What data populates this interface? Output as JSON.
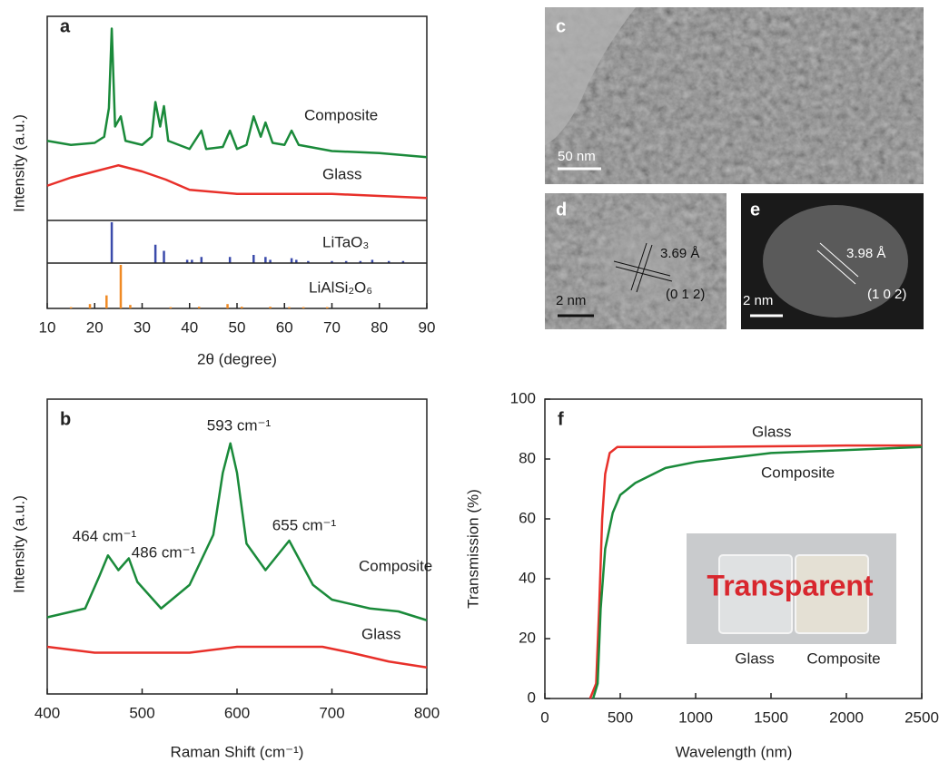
{
  "chart_data": [
    {
      "type": "line",
      "panel": "a",
      "x_label": "2θ (degree)",
      "y_label": "Intensity (a.u.)",
      "xlim": [
        10,
        90
      ],
      "xticks": [
        10,
        20,
        30,
        40,
        50,
        60,
        70,
        80,
        90
      ],
      "ylim": [
        0,
        100
      ],
      "series": [
        {
          "name": "Composite",
          "color": "#1a8a3a",
          "x": [
            10,
            15,
            20,
            22,
            23,
            23.6,
            24.3,
            25.5,
            26.5,
            30,
            32,
            32.8,
            33.8,
            34.6,
            35.5,
            40,
            42.5,
            43.5,
            47,
            48.5,
            50,
            52,
            53.5,
            55,
            56,
            57.5,
            60,
            61.5,
            63,
            70,
            80,
            90
          ],
          "values": [
            39,
            37,
            38,
            41,
            55,
            94,
            46,
            51,
            39,
            37,
            41,
            58,
            46,
            56,
            39,
            35,
            44,
            35,
            36,
            44,
            35,
            37,
            51,
            41,
            48,
            38,
            37,
            44,
            37,
            34,
            33,
            31
          ]
        },
        {
          "name": "Glass",
          "color": "#e8302a",
          "x": [
            10,
            15,
            20,
            25,
            30,
            35,
            40,
            50,
            60,
            70,
            80,
            90
          ],
          "values": [
            17,
            21,
            24,
            27,
            24,
            20,
            15,
            13,
            13,
            13,
            12,
            11
          ]
        }
      ],
      "reference_patterns": [
        {
          "name": "LiTaO₃",
          "color": "#3b4bab",
          "x": [
            23.6,
            32.8,
            34.6,
            39.5,
            40.5,
            42.5,
            48.5,
            53.5,
            56,
            57,
            61.5,
            62.5,
            65,
            70,
            73,
            76,
            78.5,
            82,
            85
          ],
          "values": [
            100,
            45,
            30,
            8,
            8,
            15,
            15,
            20,
            15,
            8,
            12,
            8,
            5,
            5,
            5,
            5,
            8,
            5,
            5
          ]
        },
        {
          "name": "LiAlSi₂O₆",
          "color": "#f08a24",
          "x": [
            15,
            19,
            22.5,
            25.5,
            27.5,
            36,
            42,
            48,
            51,
            57,
            61,
            64,
            69
          ],
          "values": [
            3,
            10,
            30,
            100,
            8,
            3,
            4,
            10,
            4,
            4,
            3,
            3,
            3
          ]
        }
      ]
    },
    {
      "type": "line",
      "panel": "b",
      "x_label": "Raman Shift (cm⁻¹)",
      "y_label": "Intensity (a.u.)",
      "xlim": [
        400,
        800
      ],
      "xticks": [
        400,
        500,
        600,
        700,
        800
      ],
      "ylim": [
        0,
        100
      ],
      "series": [
        {
          "name": "Composite",
          "color": "#1a8a3a",
          "x": [
            400,
            440,
            455,
            464,
            475,
            486,
            495,
            520,
            550,
            575,
            585,
            593,
            600,
            610,
            630,
            645,
            655,
            665,
            680,
            700,
            740,
            770,
            800
          ],
          "values": [
            26,
            29,
            40,
            47,
            42,
            46,
            38,
            29,
            37,
            54,
            75,
            85,
            75,
            51,
            42,
            48,
            52,
            46,
            37,
            32,
            29,
            28,
            25
          ]
        },
        {
          "name": "Glass",
          "color": "#e8302a",
          "x": [
            400,
            450,
            500,
            550,
            600,
            650,
            690,
            720,
            760,
            800
          ],
          "values": [
            16,
            14,
            14,
            14,
            16,
            16,
            16,
            14,
            11,
            9
          ]
        }
      ],
      "annotations": [
        "593 cm⁻¹",
        "464 cm⁻¹",
        "486 cm⁻¹",
        "655 cm⁻¹"
      ]
    },
    {
      "type": "line",
      "panel": "f",
      "x_label": "Wavelength (nm)",
      "y_label": "Transmission (%)",
      "xlim": [
        0,
        2500
      ],
      "xticks": [
        0,
        500,
        1000,
        1500,
        2000,
        2500
      ],
      "ylim": [
        0,
        100
      ],
      "yticks": [
        0,
        20,
        40,
        60,
        80,
        100
      ],
      "series": [
        {
          "name": "Glass",
          "color": "#e8302a",
          "x": [
            300,
            340,
            360,
            380,
            400,
            430,
            480,
            1000,
            2000,
            2500
          ],
          "values": [
            0,
            5,
            30,
            60,
            75,
            82,
            84,
            84,
            84.5,
            84.5
          ]
        },
        {
          "name": "Composite",
          "color": "#1a8a3a",
          "x": [
            320,
            350,
            370,
            400,
            450,
            500,
            600,
            800,
            1000,
            1500,
            2000,
            2500
          ],
          "values": [
            0,
            5,
            30,
            50,
            62,
            68,
            72,
            77,
            79,
            82,
            83,
            84
          ]
        }
      ],
      "inset": {
        "text": "Transparent",
        "labels": [
          "Glass",
          "Composite"
        ]
      }
    }
  ],
  "micrographs": [
    {
      "panel": "c",
      "scale_bar": "50 nm"
    },
    {
      "panel": "d",
      "scale_bar": "2 nm",
      "spacing": "3.69 Å",
      "plane": "(0 1 2)"
    },
    {
      "panel": "e",
      "scale_bar": "2 nm",
      "spacing": "3.98 Å",
      "plane": "(1 0 2)"
    }
  ]
}
